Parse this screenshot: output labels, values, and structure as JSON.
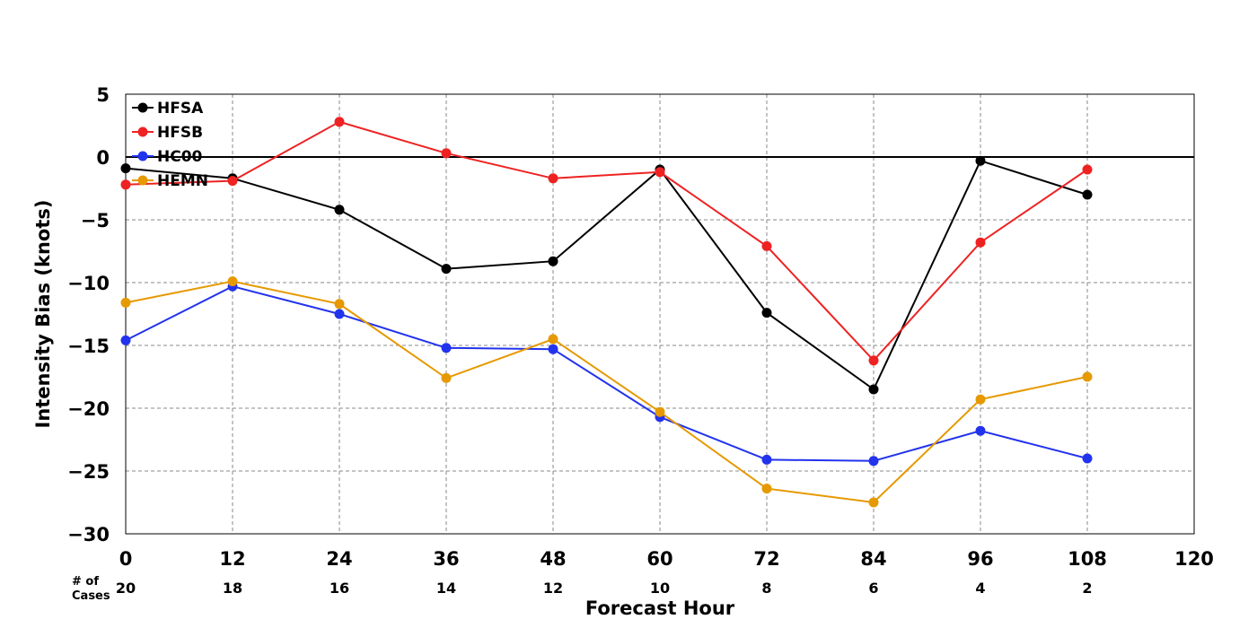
{
  "chart_data": {
    "type": "line",
    "title": "",
    "xlabel": "Forecast Hour",
    "ylabel": "Intensity Bias (knots)",
    "xlim": [
      0,
      120
    ],
    "ylim": [
      -30,
      5
    ],
    "x_ticks": [
      0,
      12,
      24,
      36,
      48,
      60,
      72,
      84,
      96,
      108,
      120
    ],
    "y_ticks": [
      5,
      0,
      -5,
      -10,
      -15,
      -20,
      -25,
      -30
    ],
    "x_tick_labels": [
      "0",
      "12",
      "24",
      "36",
      "48",
      "60",
      "72",
      "84",
      "96",
      "108",
      "120"
    ],
    "y_tick_labels": [
      "5",
      "0",
      "−5",
      "−10",
      "−15",
      "−20",
      "−25",
      "−30"
    ],
    "grid": true,
    "legend_position": "top-left",
    "reference_line": 0,
    "x": [
      0,
      12,
      24,
      36,
      48,
      60,
      72,
      84,
      96,
      108
    ],
    "cases_label": "# of\nCases",
    "cases": [
      "20",
      "18",
      "16",
      "14",
      "12",
      "10",
      "8",
      "6",
      "4",
      "2"
    ],
    "series": [
      {
        "name": "HFSA",
        "color": "#000000",
        "values": [
          -0.9,
          -1.7,
          -4.2,
          -8.9,
          -8.3,
          -1.0,
          -12.4,
          -18.5,
          -0.3,
          -3.0
        ]
      },
      {
        "name": "HFSB",
        "color": "#ee2222",
        "values": [
          -2.2,
          -1.9,
          2.8,
          0.3,
          -1.7,
          -1.2,
          -7.1,
          -16.2,
          -6.8,
          -1.0
        ]
      },
      {
        "name": "HC00",
        "color": "#2233ee",
        "values": [
          -14.6,
          -10.3,
          -12.5,
          -15.2,
          -15.3,
          -20.7,
          -24.1,
          -24.2,
          -21.8,
          -24.0
        ]
      },
      {
        "name": "HEMN",
        "color": "#e69900",
        "values": [
          -11.6,
          -9.9,
          -11.7,
          -17.6,
          -14.5,
          -20.3,
          -26.4,
          -27.5,
          -19.3,
          -17.5
        ]
      }
    ]
  }
}
